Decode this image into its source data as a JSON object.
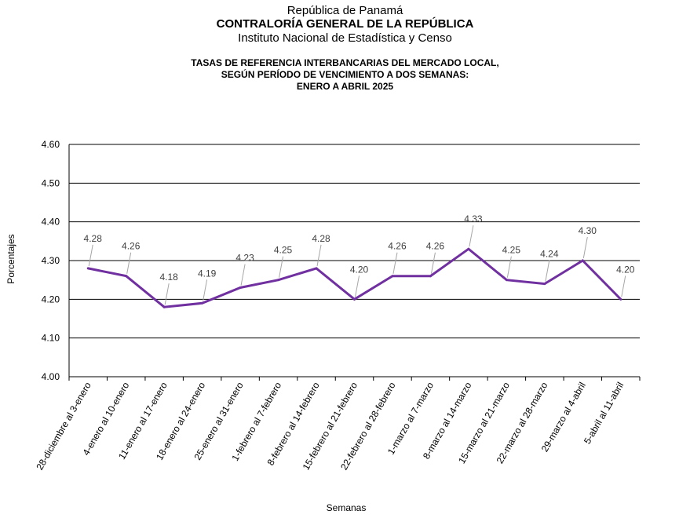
{
  "header": {
    "line1": "República de Panamá",
    "line2": "CONTRALORÍA GENERAL DE LA REPÚBLICA",
    "line3": "Instituto Nacional de Estadística y Censo"
  },
  "chart_data": {
    "type": "line",
    "title_lines": [
      "TASAS DE REFERENCIA INTERBANCARIAS DEL MERCADO LOCAL,",
      "SEGÚN PERÍODO DE VENCIMIENTO A DOS SEMANAS:",
      "ENERO A ABRIL 2025"
    ],
    "xlabel": "Semanas",
    "ylabel": "Porcentajes",
    "ylim": [
      4.0,
      4.6
    ],
    "yticks": [
      "4.00",
      "4.10",
      "4.20",
      "4.30",
      "4.40",
      "4.50",
      "4.60"
    ],
    "grid": true,
    "line_color": "#7030a0",
    "categories": [
      "28-diciembre al 3-enero",
      "4-enero al 10-enero",
      "11-enero al 17-enero",
      "18-enero al 24-enero",
      "25-enero al 31-enero",
      "1-febrero al 7-febrero",
      "8-febrero al 14-febrero",
      "15-febrero al 21-febrero",
      "22-febrero al 28-febrero",
      "1-marzo al 7-marzo",
      "8-marzo al 14-marzo",
      "15-marzo al 21-marzo",
      "22-marzo al 28-marzo",
      "29-marzo al 4-abril",
      "5-abril al 11-abril"
    ],
    "values": [
      4.28,
      4.26,
      4.18,
      4.19,
      4.23,
      4.25,
      4.28,
      4.2,
      4.26,
      4.26,
      4.33,
      4.25,
      4.24,
      4.3,
      4.2
    ],
    "data_labels": [
      "4.28",
      "4.26",
      "4.18",
      "4.19",
      "4.23",
      "4.25",
      "4.28",
      "4.20",
      "4.26",
      "4.26",
      "4.33",
      "4.25",
      "4.24",
      "4.30",
      "4.20"
    ]
  }
}
